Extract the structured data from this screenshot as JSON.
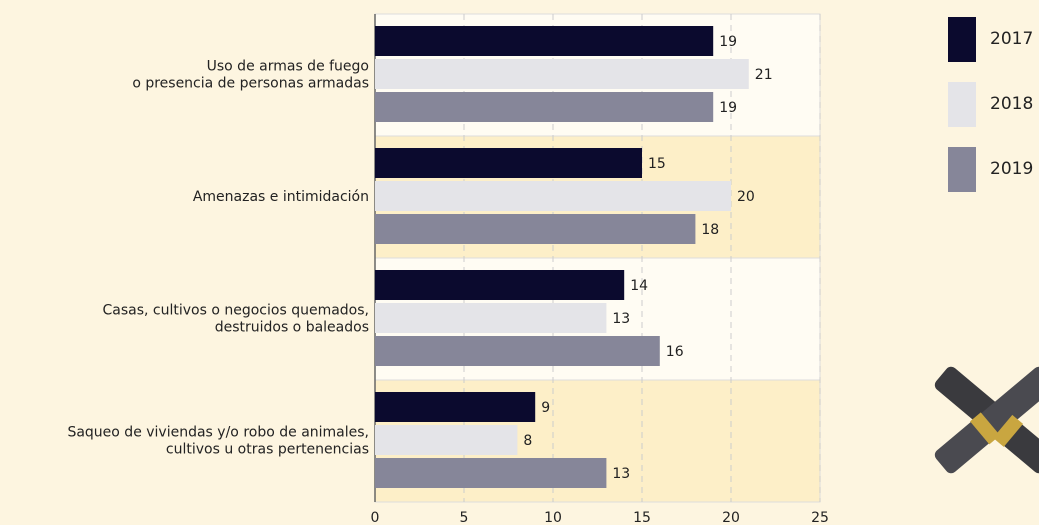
{
  "chart_data": {
    "type": "bar",
    "orientation": "horizontal",
    "categories": [
      [
        "Uso de armas de fuego",
        "o presencia de personas armadas"
      ],
      [
        "Amenazas e intimidación"
      ],
      [
        "Casas, cultivos o negocios quemados,",
        "destruidos o baleados"
      ],
      [
        "Saqueo de viviendas y/o robo de animales,",
        "cultivos u otras pertenencias"
      ]
    ],
    "series": [
      {
        "name": "2017",
        "color": "#0b0a2e",
        "values": [
          19,
          15,
          14,
          9
        ]
      },
      {
        "name": "2018",
        "color": "#e4e4e8",
        "values": [
          21,
          20,
          13,
          8
        ]
      },
      {
        "name": "2019",
        "color": "#868699",
        "values": [
          19,
          18,
          16,
          13
        ]
      }
    ],
    "xlim": [
      0,
      25
    ],
    "xticks": [
      0,
      5,
      10,
      15,
      20,
      25
    ],
    "grid": true,
    "legend": "top-right"
  }
}
